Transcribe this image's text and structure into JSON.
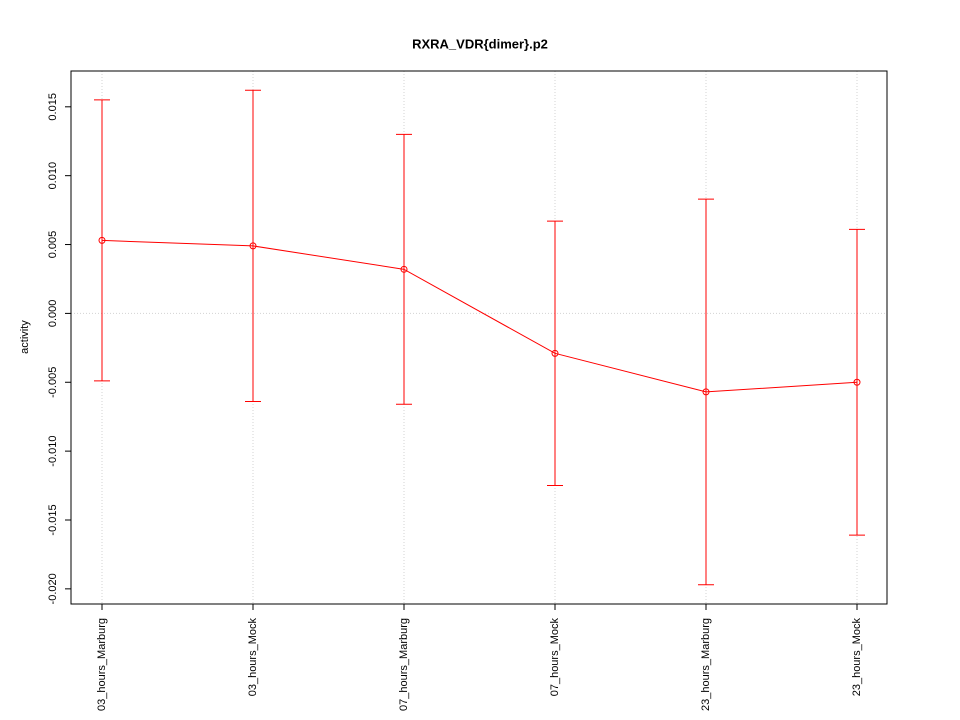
{
  "chart_data": {
    "type": "line",
    "title": "RXRA_VDR{dimer}.p2",
    "y_label": "activity",
    "categories": [
      "03_hours_Marburg",
      "03_hours_Mock",
      "07_hours_Marburg",
      "07_hours_Mock",
      "23_hours_Marburg",
      "23_hours_Mock"
    ],
    "series": [
      {
        "name": "RXRA_VDR{dimer}.p2",
        "color": "#ff0000",
        "values": [
          0.0053,
          0.0049,
          0.0032,
          -0.0029,
          -0.0057,
          -0.005
        ],
        "errors": [
          0.0102,
          0.0113,
          0.0098,
          0.0096,
          0.014,
          0.0111
        ]
      }
    ],
    "ylim": [
      -0.0211,
      0.0176
    ],
    "yticks": [
      {
        "value": -0.02,
        "label": "-0.020"
      },
      {
        "value": -0.015,
        "label": "-0.015"
      },
      {
        "value": -0.01,
        "label": "-0.010"
      },
      {
        "value": -0.005,
        "label": "-0.005"
      },
      {
        "value": 0,
        "label": "0.000"
      },
      {
        "value": 0.005,
        "label": "0.005"
      },
      {
        "value": 0.01,
        "label": "0.010"
      },
      {
        "value": 0.015,
        "label": "0.015"
      }
    ],
    "grid_color": "#d3d3d3",
    "reference_line": 0
  }
}
